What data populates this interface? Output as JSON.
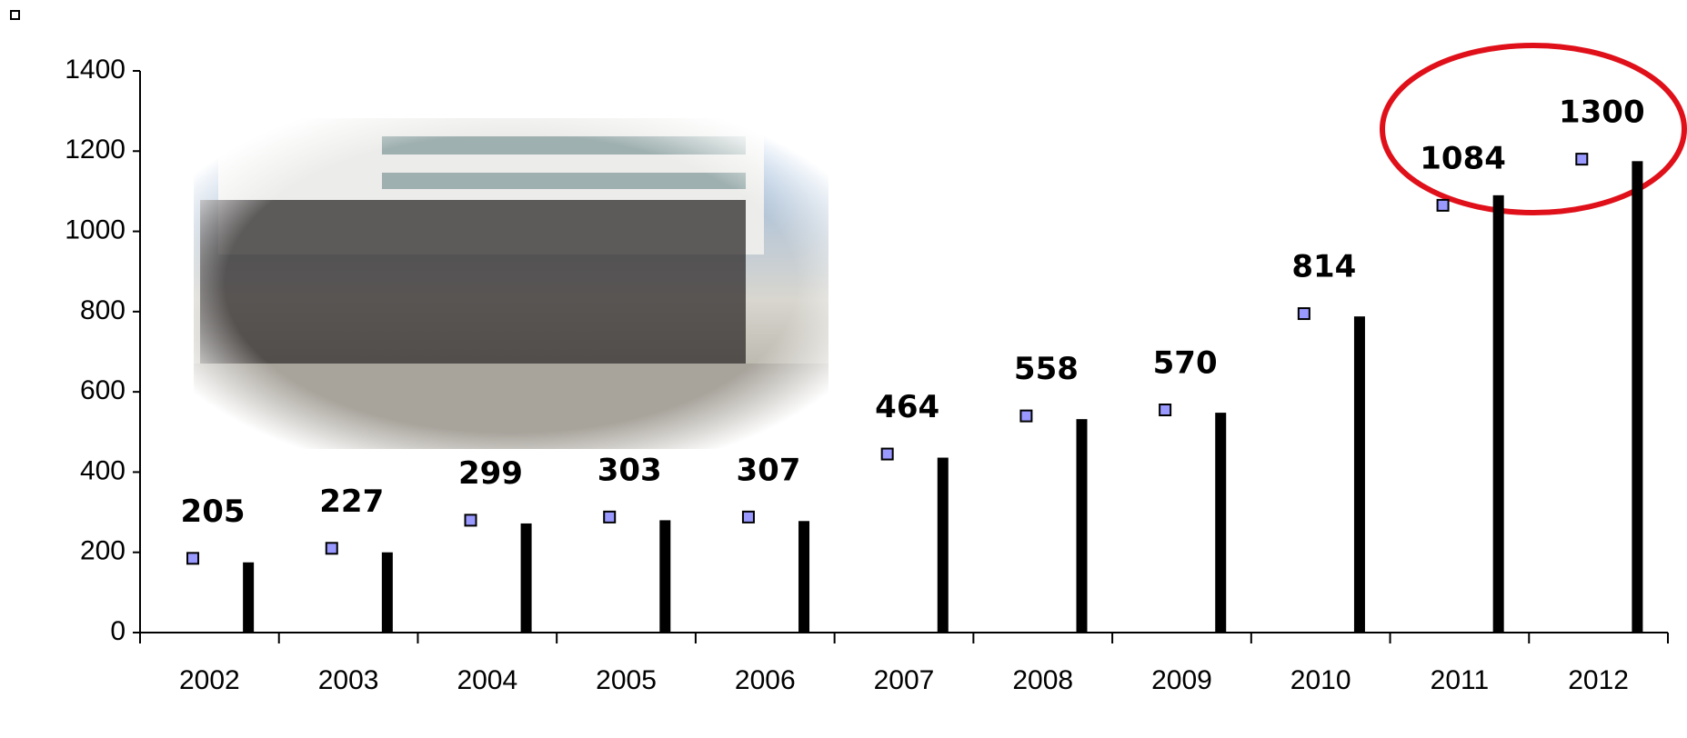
{
  "chart_data": {
    "type": "bar",
    "categories": [
      "2002",
      "2003",
      "2004",
      "2005",
      "2006",
      "2007",
      "2008",
      "2009",
      "2010",
      "2011",
      "2012"
    ],
    "series": [
      {
        "color": "#9999ff",
        "values": [
          185,
          210,
          280,
          288,
          288,
          445,
          540,
          555,
          795,
          1065,
          1180
        ]
      },
      {
        "color": "#000000",
        "values": [
          175,
          200,
          272,
          280,
          278,
          436,
          532,
          548,
          788,
          1090,
          1175
        ]
      }
    ],
    "point_labels": [
      205,
      227,
      299,
      303,
      307,
      464,
      558,
      570,
      814,
      1084,
      1300
    ],
    "ylim": [
      0,
      1400
    ],
    "yticks": [
      0,
      200,
      400,
      600,
      800,
      1000,
      1200,
      1400
    ],
    "grid": false
  }
}
